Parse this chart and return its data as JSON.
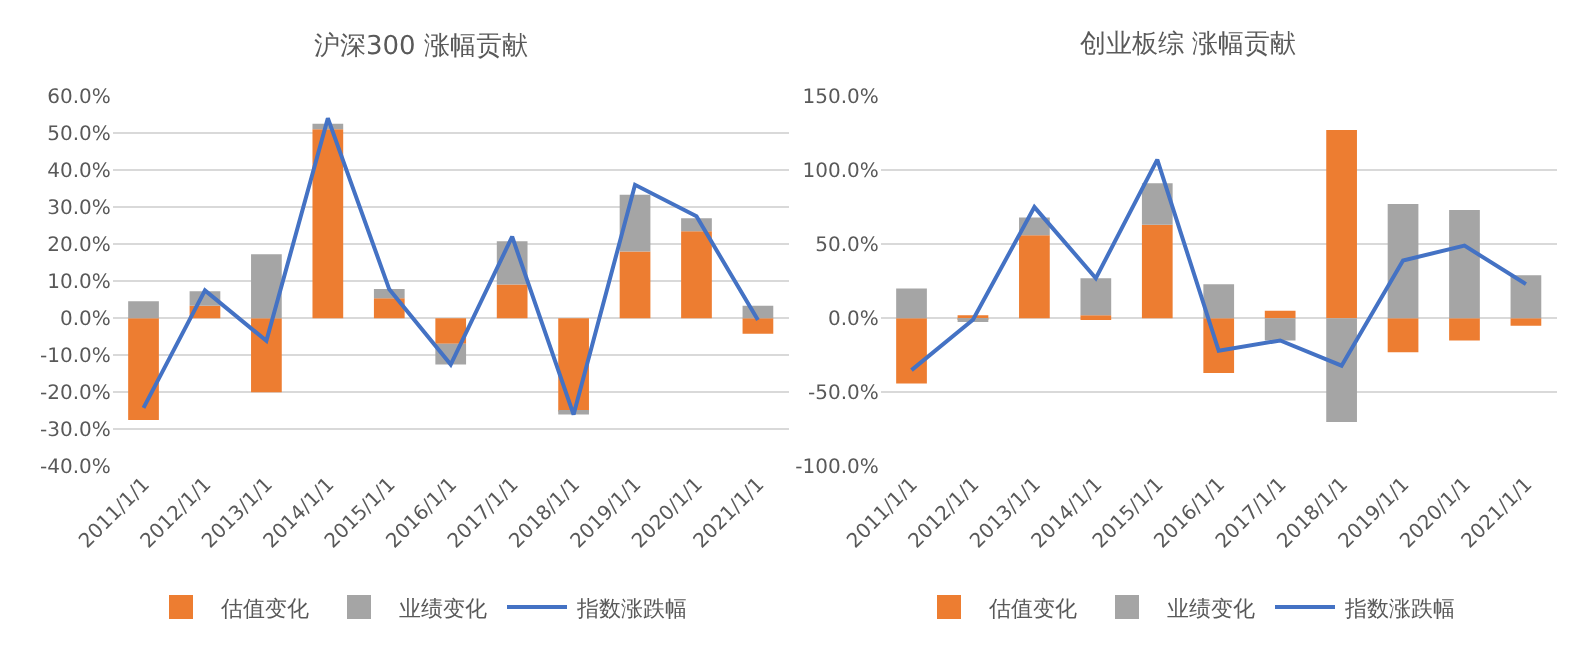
{
  "chart_data": [
    {
      "type": "bar",
      "title": "沪深300 涨幅贡献",
      "stacked": true,
      "categories": [
        "2011/1/1",
        "2012/1/1",
        "2013/1/1",
        "2014/1/1",
        "2015/1/1",
        "2016/1/1",
        "2017/1/1",
        "2018/1/1",
        "2019/1/1",
        "2020/1/1",
        "2021/1/1"
      ],
      "series": [
        {
          "name": "估值变化",
          "color": "#ed7d31",
          "values": [
            -27.5,
            3.4,
            -20,
            51,
            5.4,
            -6.9,
            9.1,
            -25.2,
            18,
            23.5,
            -4.2
          ]
        },
        {
          "name": "业绩变化",
          "color": "#a5a5a5",
          "values": [
            4.6,
            3.9,
            17.3,
            1.5,
            2.5,
            -5.6,
            11.7,
            -0.8,
            15.3,
            3.5,
            3.4
          ]
        },
        {
          "name": "指数涨跌幅",
          "type": "line",
          "color": "#4472c4",
          "values": [
            -24.2,
            7.5,
            -6.1,
            54,
            7.8,
            -12.5,
            22,
            -26,
            36,
            27.5,
            -0.5
          ]
        }
      ],
      "ylim": [
        -40,
        60
      ],
      "yticks": [
        {
          "value": -40,
          "label": "-40.0%"
        },
        {
          "value": -30,
          "label": "-30.0%"
        },
        {
          "value": -20,
          "label": "-20.0%"
        },
        {
          "value": -10,
          "label": "-10.0%"
        },
        {
          "value": 0,
          "label": "0.0%"
        },
        {
          "value": 10,
          "label": "10.0%"
        },
        {
          "value": 20,
          "label": "20.0%"
        },
        {
          "value": 30,
          "label": "30.0%"
        },
        {
          "value": 40,
          "label": "40.0%"
        },
        {
          "value": 50,
          "label": "50.0%"
        },
        {
          "value": 60,
          "label": "60.0%"
        }
      ],
      "grid": "y",
      "legend": "bottom",
      "marker": "none",
      "line_style": "solid"
    },
    {
      "type": "bar",
      "title": "创业板综 涨幅贡献",
      "stacked": true,
      "categories": [
        "2011/1/1",
        "2012/1/1",
        "2013/1/1",
        "2014/1/1",
        "2015/1/1",
        "2016/1/1",
        "2017/1/1",
        "2018/1/1",
        "2019/1/1",
        "2020/1/1",
        "2021/1/1"
      ],
      "series": [
        {
          "name": "估值变化",
          "color": "#ed7d31",
          "values": [
            -44,
            2,
            56,
            2,
            63,
            -37,
            5,
            127,
            -23,
            -15,
            -5
          ]
        },
        {
          "name": "业绩变化",
          "color": "#a5a5a5",
          "values": [
            20,
            -2,
            12,
            25,
            28,
            23,
            -15,
            -70,
            77,
            73,
            29
          ]
        },
        {
          "name": "指数涨跌幅",
          "type": "line",
          "color": "#4472c4",
          "values": [
            -35,
            -1,
            75,
            27,
            107,
            -22,
            -15,
            -32,
            39,
            49,
            23
          ]
        }
      ],
      "ylim": [
        -100,
        150
      ],
      "yticks": [
        {
          "value": -100,
          "label": "-100.0%"
        },
        {
          "value": -50,
          "label": "-50.0%"
        },
        {
          "value": 0,
          "label": "0.0%"
        },
        {
          "value": 50,
          "label": "50.0%"
        },
        {
          "value": 100,
          "label": "100.0%"
        },
        {
          "value": 150,
          "label": "150.0%"
        }
      ],
      "grid": "y",
      "legend": "bottom",
      "marker": "none",
      "line_style": "solid"
    }
  ]
}
